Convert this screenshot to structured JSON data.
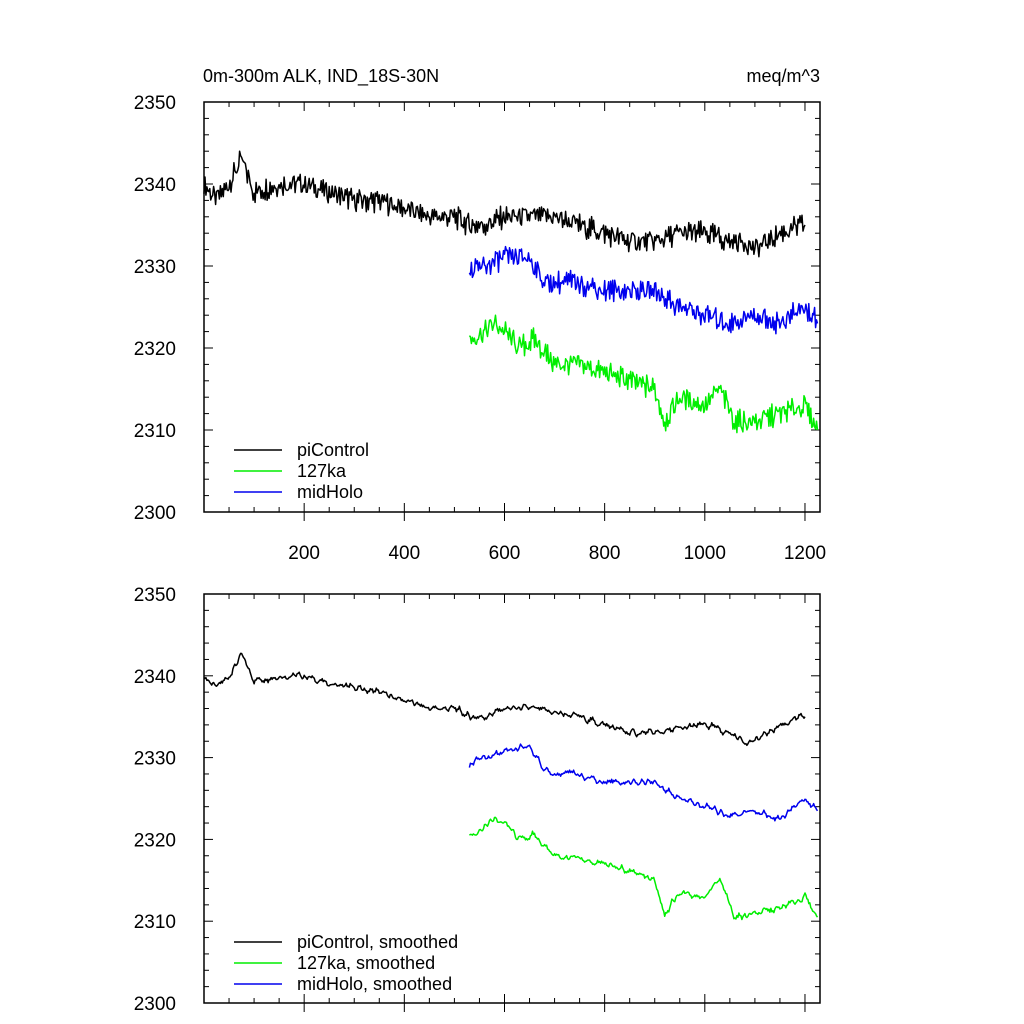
{
  "chart_data": [
    {
      "type": "line",
      "title_left": "0m-300m ALK, IND_18S-30N",
      "title_right": "meq/m^3",
      "xlim": [
        0,
        1230
      ],
      "ylim": [
        2300,
        2350
      ],
      "x_ticks": [
        200,
        400,
        600,
        800,
        1000,
        1200
      ],
      "x_tick_labels": [
        "200",
        "400",
        "600",
        "800",
        "1000",
        "1200"
      ],
      "y_ticks": [
        2300,
        2310,
        2320,
        2330,
        2340,
        2350
      ],
      "y_tick_labels": [
        "2300",
        "2310",
        "2320",
        "2330",
        "2340",
        "2350"
      ],
      "legend_position": "bottom-left",
      "series": [
        {
          "name": "piControl",
          "color": "#000000",
          "x": [
            0,
            25,
            50,
            75,
            100,
            150,
            200,
            250,
            300,
            350,
            400,
            450,
            500,
            530,
            560,
            600,
            650,
            700,
            750,
            800,
            850,
            900,
            950,
            1000,
            1050,
            1080,
            1100,
            1150,
            1200
          ],
          "y": [
            2340,
            2338,
            2340,
            2343,
            2339,
            2340,
            2340,
            2339,
            2338,
            2338,
            2337,
            2336,
            2336,
            2335,
            2335,
            2336,
            2336,
            2336,
            2335,
            2334,
            2333,
            2333,
            2334,
            2334,
            2333,
            2333,
            2332,
            2334,
            2335
          ]
        },
        {
          "name": "127ka",
          "color": "#00ee00",
          "x": [
            530,
            560,
            580,
            600,
            630,
            660,
            700,
            750,
            800,
            850,
            900,
            920,
            950,
            1000,
            1030,
            1060,
            1100,
            1150,
            1200,
            1225
          ],
          "y": [
            2321,
            2322,
            2323,
            2322,
            2320,
            2321,
            2318,
            2318,
            2317,
            2316,
            2315,
            2311,
            2314,
            2313,
            2315,
            2311,
            2311,
            2312,
            2313,
            2310
          ]
        },
        {
          "name": "midHolo",
          "color": "#0000ee",
          "x": [
            530,
            560,
            600,
            650,
            680,
            700,
            750,
            800,
            850,
            900,
            950,
            1000,
            1050,
            1100,
            1150,
            1200,
            1225
          ],
          "y": [
            2329,
            2330,
            2331,
            2331,
            2328,
            2328,
            2328,
            2327,
            2327,
            2327,
            2325,
            2324,
            2323,
            2324,
            2323,
            2325,
            2323
          ]
        }
      ]
    },
    {
      "type": "line",
      "xlim": [
        0,
        1230
      ],
      "ylim": [
        2300,
        2350
      ],
      "y_ticks": [
        2300,
        2310,
        2320,
        2330,
        2340,
        2350
      ],
      "y_tick_labels": [
        "2300",
        "2310",
        "2320",
        "2330",
        "2340",
        "2350"
      ],
      "legend_position": "bottom-left",
      "series": [
        {
          "name": "piControl, smoothed",
          "color": "#000000",
          "x": [
            0,
            25,
            50,
            75,
            100,
            150,
            200,
            250,
            300,
            350,
            400,
            450,
            500,
            530,
            560,
            600,
            650,
            700,
            750,
            800,
            850,
            900,
            950,
            1000,
            1050,
            1080,
            1100,
            1150,
            1200
          ],
          "y": [
            2340,
            2338.5,
            2340,
            2342.5,
            2339.5,
            2340,
            2340,
            2339,
            2338.5,
            2338,
            2337,
            2336,
            2336,
            2335,
            2335,
            2336,
            2336,
            2335.5,
            2335,
            2334,
            2333,
            2333,
            2333.5,
            2334,
            2333,
            2332,
            2332,
            2334,
            2335
          ]
        },
        {
          "name": "127ka, smoothed",
          "color": "#00ee00",
          "x": [
            530,
            560,
            580,
            600,
            630,
            660,
            700,
            750,
            800,
            850,
            900,
            920,
            950,
            1000,
            1030,
            1060,
            1100,
            1150,
            1200,
            1225
          ],
          "y": [
            2320.5,
            2321.5,
            2322.5,
            2322,
            2320,
            2320.5,
            2318,
            2317.5,
            2317,
            2316,
            2315,
            2311,
            2313.5,
            2313,
            2315,
            2310.5,
            2311,
            2311.5,
            2313,
            2310.5
          ]
        },
        {
          "name": "midHolo, smoothed",
          "color": "#0000ee",
          "x": [
            530,
            560,
            600,
            650,
            680,
            700,
            750,
            800,
            850,
            900,
            950,
            1000,
            1050,
            1100,
            1150,
            1200,
            1225
          ],
          "y": [
            2329,
            2330,
            2330.5,
            2331.5,
            2328.5,
            2328,
            2328,
            2327,
            2327,
            2327,
            2325,
            2324,
            2323,
            2323.5,
            2322.5,
            2325,
            2323.5
          ]
        }
      ]
    }
  ]
}
